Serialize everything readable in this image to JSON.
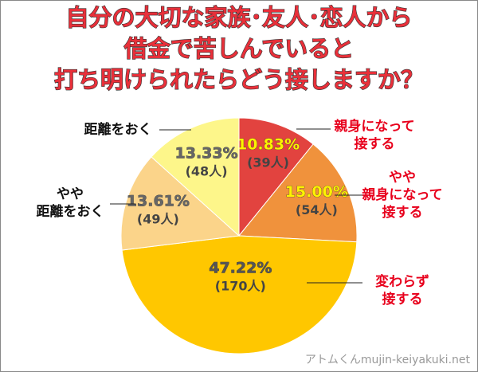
{
  "chart_data": {
    "type": "pie",
    "title": [
      "自分の大切な家族･友人･恋人から",
      "借金で苦しんでいると",
      "打ち明けられたらどう接しますか？"
    ],
    "categories": [
      "親身になって\n接する",
      "やや\n親身になって\n接する",
      "変わらず\n接する",
      "やや\n距離をおく",
      "距離をおく"
    ],
    "values": [
      10.83,
      15.0,
      47.22,
      13.61,
      13.33
    ],
    "value_labels": [
      "10.83%",
      "15.00%",
      "47.22%",
      "13.61%",
      "13.33%"
    ],
    "counts": [
      39,
      54,
      170,
      49,
      48
    ],
    "count_labels": [
      "(39人)",
      "(54人)",
      "(170人)",
      "(49人)",
      "(48人)"
    ],
    "colors": [
      "#e2433f",
      "#f0923c",
      "#ffc700",
      "#fbd48a",
      "#fdf68a"
    ],
    "value_label_colors": [
      "#fff200",
      "#fff200",
      "#555555",
      "#666666",
      "#666666"
    ],
    "category_colors": [
      "#e8001c",
      "#e8001c",
      "#e8001c",
      "#111111",
      "#111111"
    ],
    "watermark": "アトムくんmujin-keiyakuki.net"
  }
}
